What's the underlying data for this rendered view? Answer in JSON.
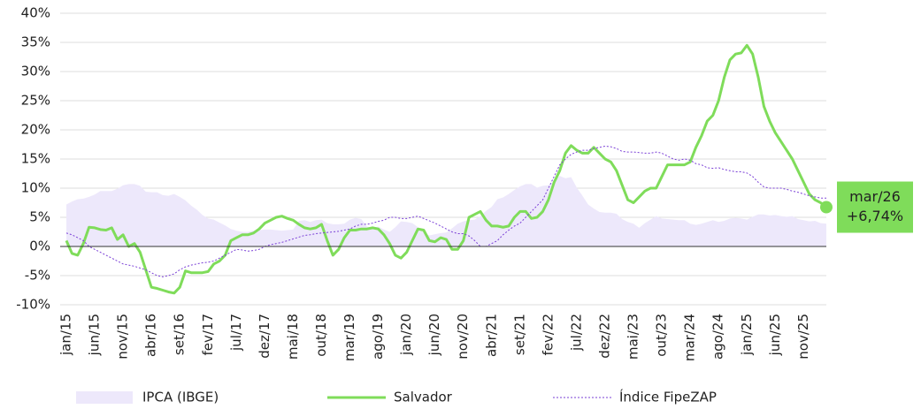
{
  "chart_data": {
    "type": "line",
    "categories": [
      "jan/15",
      null,
      null,
      null,
      null,
      "jun/15",
      null,
      null,
      null,
      null,
      "nov/15",
      null,
      null,
      null,
      null,
      "abr/16",
      null,
      null,
      null,
      null,
      "set/16",
      null,
      null,
      null,
      null,
      "fev/17",
      null,
      null,
      null,
      null,
      "jul/17",
      null,
      null,
      null,
      null,
      "dez/17",
      null,
      null,
      null,
      null,
      "mai/18",
      null,
      null,
      null,
      null,
      "out/18",
      null,
      null,
      null,
      null,
      "mar/19",
      null,
      null,
      null,
      null,
      "ago/19",
      null,
      null,
      null,
      null,
      "jan/20",
      null,
      null,
      null,
      null,
      "jun/20",
      null,
      null,
      null,
      null,
      "nov/20",
      null,
      null,
      null,
      null,
      "abr/21",
      null,
      null,
      null,
      null,
      "set/21",
      null,
      null,
      null,
      null,
      "fev/22",
      null,
      null,
      null,
      null,
      "jul/22",
      null,
      null,
      null,
      null,
      "dez/22",
      null,
      null,
      null,
      null,
      "mai/23",
      null,
      null,
      null,
      null,
      "out/23",
      null,
      null,
      null,
      null,
      "mar/24",
      null,
      null,
      null,
      null,
      "ago/24",
      null,
      null,
      null,
      null,
      "jan/25",
      null,
      null,
      null,
      null,
      "jun/25",
      null,
      null,
      null,
      null,
      "nov/25",
      null,
      null,
      null,
      null
    ],
    "series": [
      {
        "name": "IPCA (IBGE)",
        "type": "area",
        "color": "#ede8fb",
        "values": [
          7.2,
          7.7,
          8.1,
          8.2,
          8.5,
          8.9,
          9.5,
          9.5,
          9.5,
          9.9,
          10.5,
          10.7,
          10.7,
          10.4,
          9.4,
          9.3,
          9.3,
          8.8,
          8.7,
          9,
          8.5,
          7.9,
          7,
          6.3,
          5.4,
          4.8,
          4.6,
          4.1,
          3.6,
          3,
          2.7,
          2.5,
          2.5,
          2.7,
          2.8,
          2.9,
          2.9,
          2.8,
          2.7,
          2.8,
          2.9,
          4.4,
          4.5,
          4.2,
          4.5,
          4.6,
          4,
          3.8,
          3.8,
          3.9,
          4.6,
          4.9,
          4.7,
          3.4,
          3.2,
          3.4,
          2.9,
          2.5,
          3.3,
          4.3,
          4.2,
          4,
          3.3,
          2.4,
          1.9,
          2.1,
          2.3,
          2.4,
          3.1,
          3.9,
          4.3,
          4.5,
          4.6,
          5.2,
          6.1,
          6.8,
          8.1,
          8.4,
          9,
          9.7,
          10.3,
          10.7,
          10.7,
          10.1,
          10.4,
          10.5,
          11.3,
          12.1,
          11.7,
          11.9,
          10.1,
          8.7,
          7.2,
          6.5,
          5.9,
          5.8,
          5.8,
          5.6,
          4.7,
          4.2,
          3.9,
          3.2,
          4,
          4.6,
          5.2,
          4.8,
          4.7,
          4.6,
          4.5,
          4.5,
          3.9,
          3.7,
          3.9,
          4.2,
          4.5,
          4.2,
          4.4,
          4.8,
          4.9,
          4.8,
          4.6,
          5.1,
          5.5,
          5.5,
          5.3,
          5.4,
          5.2,
          5.1,
          5.2,
          4.7,
          4.5,
          4.3,
          4.4,
          4,
          3.9
        ]
      },
      {
        "name": "Salvador",
        "type": "line",
        "color": "#7fdc5a",
        "values": [
          1,
          -1.2,
          -1.5,
          0.5,
          3.3,
          3.2,
          2.9,
          2.8,
          3.2,
          1.2,
          2,
          0,
          0.5,
          -1,
          -4,
          -7,
          -7.2,
          -7.5,
          -7.8,
          -8,
          -7,
          -4.2,
          -4.5,
          -4.5,
          -4.5,
          -4.3,
          -3,
          -2.5,
          -1.5,
          1,
          1.5,
          2,
          2,
          2.3,
          3,
          4,
          4.5,
          5,
          5.2,
          4.8,
          4.5,
          3.8,
          3.2,
          3,
          3.2,
          3.8,
          1,
          -1.5,
          -0.5,
          1.5,
          2.8,
          2.8,
          3,
          3,
          3.2,
          3,
          2,
          0.5,
          -1.5,
          -2,
          -1,
          1,
          3,
          2.8,
          1,
          0.8,
          1.5,
          1.2,
          -0.5,
          -0.5,
          1,
          5,
          5.5,
          6,
          4.5,
          3.5,
          3.5,
          3.3,
          3.5,
          5,
          6,
          6,
          4.8,
          5,
          6,
          8,
          11,
          13,
          16,
          17.3,
          16.5,
          16,
          16,
          17,
          16,
          15,
          14.5,
          13,
          10.5,
          8,
          7.5,
          8.5,
          9.5,
          10,
          10,
          12,
          14,
          14,
          14,
          14,
          14.5,
          17,
          19,
          21.5,
          22.5,
          25,
          29,
          32,
          33,
          33.2,
          34.5,
          33,
          29,
          24,
          21.5,
          19.5,
          18,
          16.5,
          15,
          13,
          11,
          9,
          8,
          7.5,
          6.74
        ]
      },
      {
        "name": "Índice FipeZAP",
        "type": "dotted",
        "color": "#7a3fd6",
        "values": [
          2.3,
          2,
          1.5,
          1,
          0,
          -0.5,
          -1,
          -1.5,
          -2,
          -2.5,
          -3,
          -3.2,
          -3.4,
          -3.7,
          -4,
          -4.5,
          -5,
          -5.2,
          -5,
          -4.7,
          -4,
          -3.5,
          -3.2,
          -3,
          -2.8,
          -2.7,
          -2.5,
          -2,
          -1.5,
          -1,
          -0.5,
          -0.6,
          -0.8,
          -0.7,
          -0.5,
          0,
          0.3,
          0.5,
          0.7,
          1,
          1.3,
          1.6,
          1.9,
          2,
          2.2,
          2.3,
          2.4,
          2.5,
          2.6,
          2.8,
          3,
          3.5,
          3.8,
          3.8,
          4,
          4.3,
          4.5,
          5,
          5,
          4.8,
          4.8,
          5,
          5.2,
          4.8,
          4.4,
          4,
          3.5,
          3,
          2.5,
          2.2,
          2.2,
          1.8,
          1,
          0,
          0,
          0.5,
          1,
          2,
          2.8,
          3.5,
          4,
          5,
          6,
          7,
          8,
          10,
          12,
          14,
          15,
          15.8,
          16.2,
          16.5,
          16.5,
          16.8,
          17,
          17.2,
          17.1,
          16.8,
          16.3,
          16.2,
          16.2,
          16.1,
          16,
          16,
          16.2,
          16,
          15.5,
          15,
          14.8,
          15,
          14.8,
          14.2,
          14,
          13.5,
          13.4,
          13.5,
          13.2,
          13,
          12.8,
          12.8,
          12.6,
          12,
          11,
          10.2,
          10,
          10,
          10,
          9.8,
          9.5,
          9.3,
          9,
          8.7,
          8.5,
          8.3,
          8.3
        ]
      }
    ],
    "annotation": {
      "text": [
        "mar/26",
        "+6,74%"
      ],
      "color": "#7fdc5a"
    },
    "ylim": [
      -10,
      40
    ],
    "yticks": [
      {
        "value": -10,
        "label": "-10%"
      },
      {
        "value": -5,
        "label": "-5%"
      },
      {
        "value": 0,
        "label": "0%"
      },
      {
        "value": 5,
        "label": "5%"
      },
      {
        "value": 10,
        "label": "10%"
      },
      {
        "value": 15,
        "label": "15%"
      },
      {
        "value": 20,
        "label": "20%"
      },
      {
        "value": 25,
        "label": "25%"
      },
      {
        "value": 30,
        "label": "30%"
      },
      {
        "value": 35,
        "label": "35%"
      },
      {
        "value": 40,
        "label": "40%"
      }
    ],
    "grid": true
  }
}
